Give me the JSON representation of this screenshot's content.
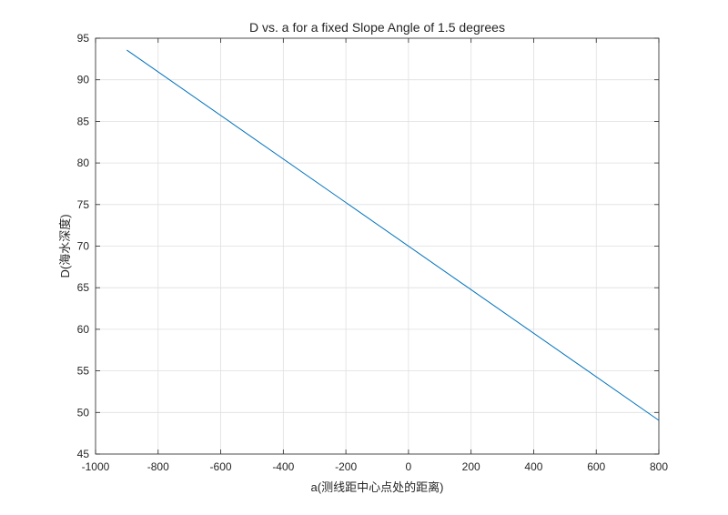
{
  "chart_data": {
    "type": "line",
    "title": "D vs. a for a fixed Slope Angle of 1.5 degrees",
    "xlabel": "a(测线距中心点处的距离)",
    "ylabel": "D(海水深度)",
    "xlim": [
      -1000,
      800
    ],
    "ylim": [
      45,
      95
    ],
    "xticks": [
      -1000,
      -800,
      -600,
      -400,
      -200,
      0,
      200,
      400,
      600,
      800
    ],
    "yticks": [
      45,
      50,
      55,
      60,
      65,
      70,
      75,
      80,
      85,
      90,
      95
    ],
    "grid": true,
    "series": [
      {
        "color": "#0072bd",
        "x": [
          -900,
          800
        ],
        "y": [
          93.57,
          49.05
        ]
      }
    ]
  }
}
